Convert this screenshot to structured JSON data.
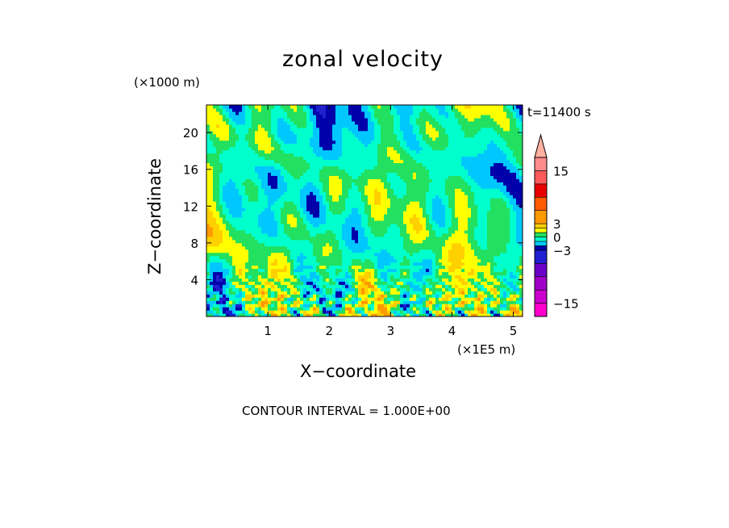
{
  "chart_data": {
    "type": "heatmap",
    "title": "zonal velocity",
    "xlabel": "X−coordinate",
    "ylabel": "Z−coordinate",
    "x_unit": "(×1E5 m)",
    "y_unit": "(×1000 m)",
    "time_label": "t=11400 s",
    "contour_label": "CONTOUR INTERVAL = 1.000E+00",
    "xlim": [
      0,
      5.15
    ],
    "ylim": [
      0,
      23
    ],
    "x_ticks": [
      1,
      2,
      3,
      4,
      5
    ],
    "x_tick_labels": [
      "1",
      "2",
      "3",
      "4",
      "5"
    ],
    "y_ticks": [
      4,
      8,
      12,
      16,
      20
    ],
    "y_tick_labels": [
      "4",
      "8",
      "12",
      "16",
      "20"
    ],
    "colorbar": {
      "levels": [
        -18,
        -15,
        -12,
        -9,
        -6,
        -3,
        -2,
        -1,
        0,
        1,
        2,
        3,
        6,
        9,
        12,
        15,
        18
      ],
      "colors": [
        "#ff00cc",
        "#cc00cc",
        "#a000c8",
        "#6a00c8",
        "#2020d0",
        "#0000aa",
        "#00c8ff",
        "#00ffcc",
        "#22e060",
        "#ffff00",
        "#ffd000",
        "#ff9a00",
        "#ff5a00",
        "#e80000",
        "#ff5a5a",
        "#ff8c8c",
        "#ffb0a0"
      ],
      "tick_values": [
        15,
        3,
        0,
        -3,
        -15
      ],
      "tick_labels": [
        "15",
        "3",
        "0",
        "−3",
        "−15"
      ]
    },
    "field_description_values": {
      "dominant_range": [
        -1,
        2
      ],
      "min_approx": -9,
      "max_approx": 6
    }
  }
}
